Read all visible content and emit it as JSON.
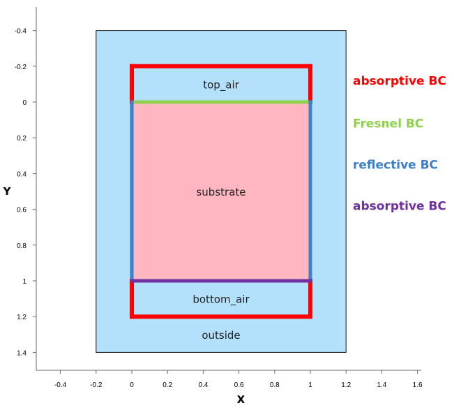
{
  "chart_data": {
    "type": "diagram",
    "xlabel": "X",
    "ylabel": "Y",
    "xlim": [
      -0.5,
      1.6
    ],
    "ylim": [
      1.4,
      -0.4
    ],
    "y_inverted": true,
    "x_ticks": [
      -0.4,
      -0.2,
      0,
      0.2,
      0.4,
      0.6,
      0.8,
      1,
      1.2,
      1.4,
      1.6
    ],
    "y_ticks": [
      -0.4,
      -0.2,
      0,
      0.2,
      0.4,
      0.6,
      0.8,
      1,
      1.2,
      1.4
    ],
    "regions": [
      {
        "name": "outside",
        "x": [
          -0.2,
          1.2
        ],
        "y": [
          -0.4,
          1.4
        ],
        "color": "#b3e0fb"
      },
      {
        "name": "top_air",
        "x": [
          0,
          1
        ],
        "y": [
          -0.2,
          0
        ],
        "color": "#b3e0fb"
      },
      {
        "name": "substrate",
        "x": [
          0,
          1
        ],
        "y": [
          0,
          1
        ],
        "color": "#ffb6c1"
      },
      {
        "name": "bottom_air",
        "x": [
          0,
          1
        ],
        "y": [
          1,
          1.2
        ],
        "color": "#b3e0fb"
      }
    ],
    "boundaries": [
      {
        "label": "absorptive BC",
        "color": "#ff0000",
        "segments": [
          [
            [
              0,
              0
            ],
            [
              0,
              -0.2
            ]
          ],
          [
            [
              0,
              -0.2
            ],
            [
              1,
              -0.2
            ]
          ],
          [
            [
              1,
              -0.2
            ],
            [
              1,
              0
            ]
          ],
          [
            [
              0,
              1
            ],
            [
              0,
              1.2
            ]
          ],
          [
            [
              0,
              1.2
            ],
            [
              1,
              1.2
            ]
          ],
          [
            [
              1,
              1.2
            ],
            [
              1,
              1
            ]
          ]
        ]
      },
      {
        "label": "Fresnel BC",
        "color": "#8fd14f",
        "segments": [
          [
            [
              0,
              0
            ],
            [
              1,
              0
            ]
          ]
        ]
      },
      {
        "label": "reflective BC",
        "color": "#3d7fc9",
        "segments": [
          [
            [
              0,
              0
            ],
            [
              0,
              1
            ]
          ],
          [
            [
              1,
              0
            ],
            [
              1,
              1
            ]
          ]
        ]
      },
      {
        "label": "absorptive BC",
        "color": "#7030a0",
        "segments": [
          [
            [
              0,
              1
            ],
            [
              1,
              1
            ]
          ]
        ]
      }
    ]
  }
}
